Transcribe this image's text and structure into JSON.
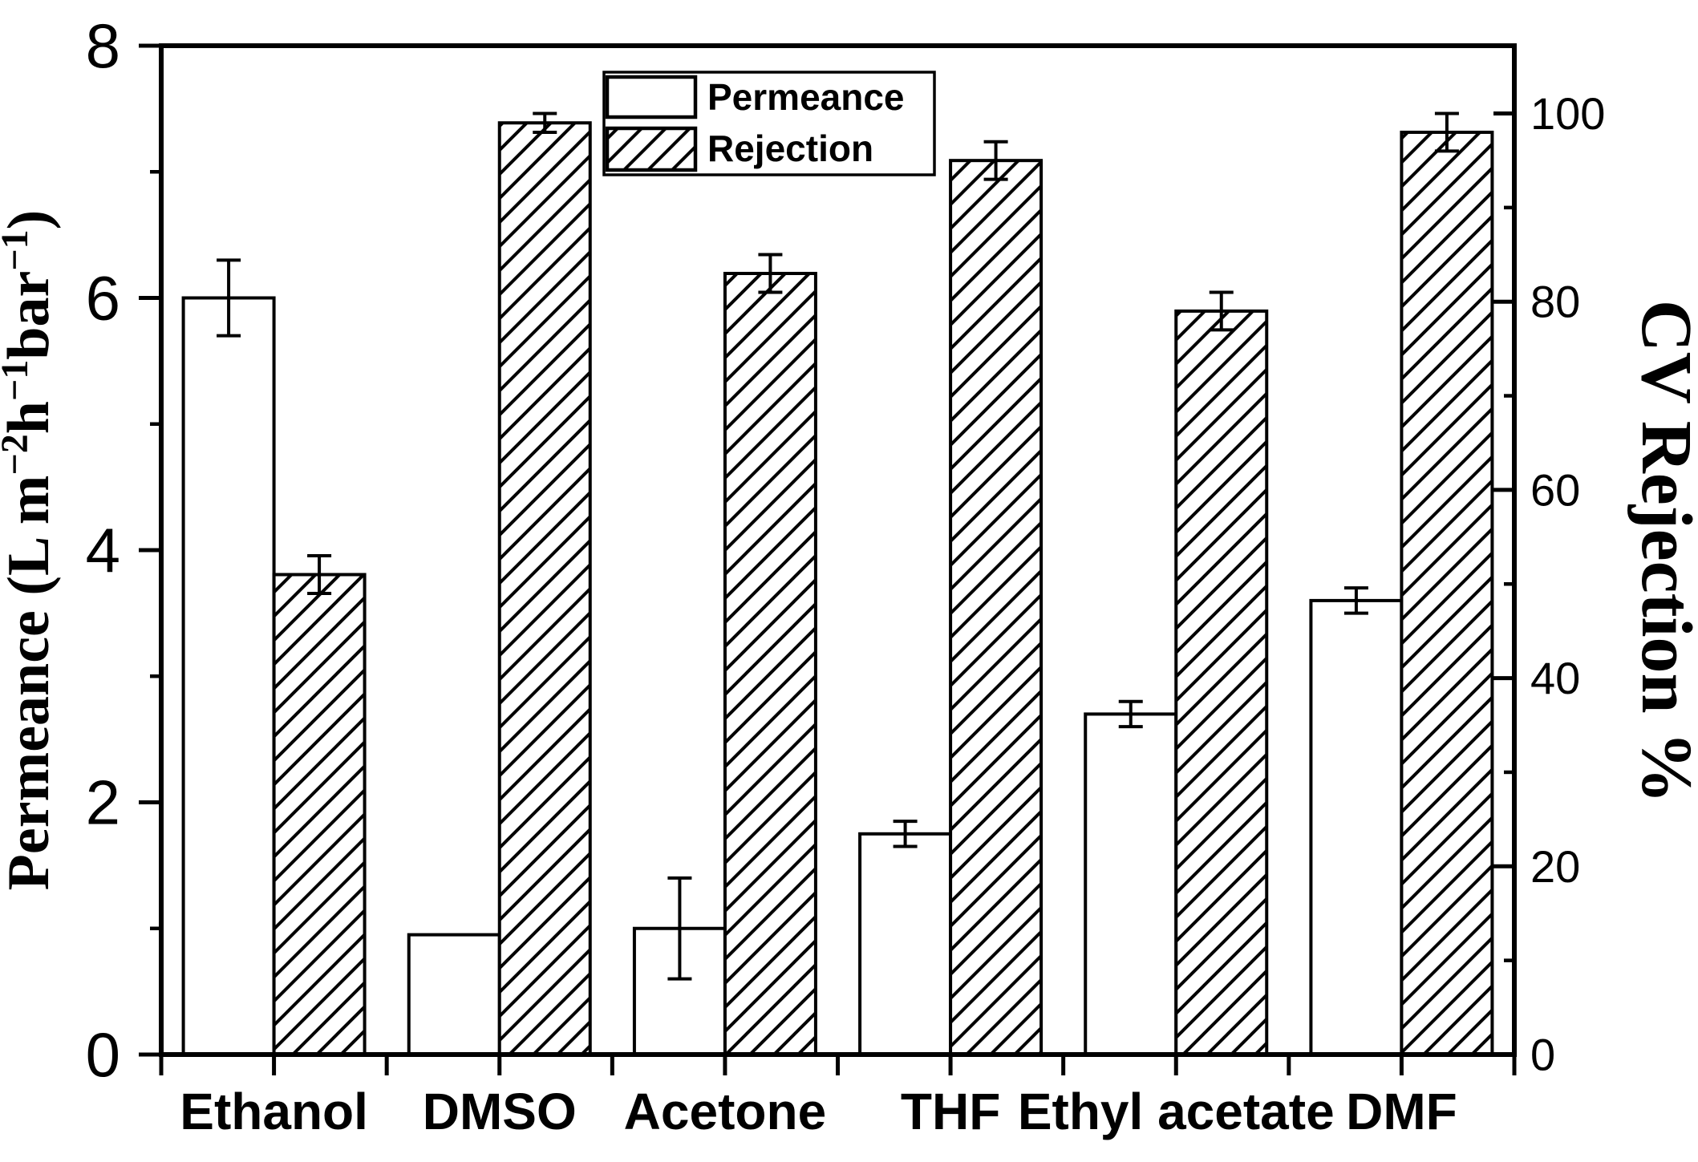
{
  "figure": {
    "background": "#ffffff",
    "ink": "#000000"
  },
  "chart_data": {
    "type": "bar",
    "title": "",
    "categories": [
      "Ethanol",
      "DMSO",
      "Acetone",
      "THF",
      "Ethyl acetate",
      "DMF"
    ],
    "series": [
      {
        "name": "Permeance",
        "axis": "left",
        "style": "open-white",
        "values": [
          6.0,
          0.95,
          1.0,
          1.75,
          2.7,
          3.6
        ],
        "errors": [
          0.3,
          0,
          0.4,
          0.1,
          0.1,
          0.1
        ]
      },
      {
        "name": "Rejection",
        "axis": "right",
        "style": "diagonal-hatch",
        "values": [
          51,
          99,
          83,
          95,
          79,
          98
        ],
        "errors": [
          2,
          1,
          2,
          2,
          2,
          2
        ]
      }
    ],
    "left_axis": {
      "label_parts": [
        {
          "text": "Permeance (L m"
        },
        {
          "text": "−2",
          "sup": true
        },
        {
          "text": "h"
        },
        {
          "text": "−1",
          "sup": true
        },
        {
          "text": "bar"
        },
        {
          "text": "−1",
          "sup": true
        },
        {
          "text": ")"
        }
      ],
      "min": 0,
      "max": 8,
      "major_ticks": [
        0,
        2,
        4,
        6,
        8
      ],
      "minor_ticks": [
        1,
        3,
        5,
        7
      ]
    },
    "right_axis": {
      "label": "CV Rejection %",
      "min": 0,
      "max": 107.2,
      "major_ticks": [
        0,
        20,
        40,
        60,
        80,
        100
      ],
      "minor_ticks": [
        10,
        30,
        50,
        70,
        90
      ]
    },
    "legend": {
      "position": "top-center",
      "entries": [
        "Permeance",
        "Rejection"
      ]
    },
    "grid": false
  }
}
